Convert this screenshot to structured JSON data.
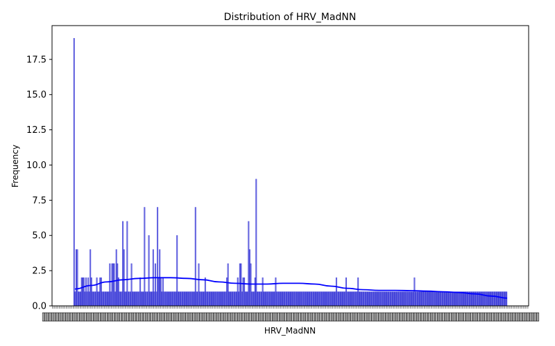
{
  "chart_data": {
    "type": "bar",
    "title": "Distribution of HRV_MadNN",
    "xlabel": "HRV_MadNN",
    "ylabel": "Frequency",
    "ylim": [
      0,
      19.9
    ],
    "y_ticks": [
      "0.0",
      "2.5",
      "5.0",
      "7.5",
      "10.0",
      "12.5",
      "15.0",
      "17.5"
    ],
    "y_tick_values": [
      0,
      2.5,
      5,
      7.5,
      10,
      12.5,
      15,
      17.5
    ],
    "grid": false,
    "bar_color": "#0000cc",
    "kde_color": "#0000ff",
    "counts": [
      19,
      1,
      4,
      4,
      1,
      1,
      1,
      2,
      2,
      2,
      1,
      2,
      1,
      2,
      1,
      4,
      2,
      1,
      1,
      1,
      1,
      2,
      1,
      1,
      2,
      2,
      1,
      1,
      1,
      1,
      1,
      1,
      1,
      3,
      1,
      3,
      3,
      3,
      1,
      4,
      3,
      2,
      1,
      1,
      1,
      6,
      4,
      1,
      1,
      6,
      1,
      1,
      1,
      3,
      1,
      1,
      1,
      1,
      1,
      1,
      1,
      2,
      1,
      1,
      1,
      7,
      1,
      1,
      1,
      5,
      1,
      1,
      1,
      4,
      1,
      3,
      1,
      7,
      2,
      4,
      2,
      1,
      2,
      1,
      1,
      1,
      1,
      1,
      1,
      1,
      1,
      1,
      1,
      1,
      1,
      5,
      1,
      1,
      1,
      1,
      1,
      1,
      1,
      1,
      1,
      1,
      1,
      1,
      1,
      1,
      1,
      1,
      7,
      1,
      1,
      3,
      1,
      1,
      1,
      1,
      1,
      2,
      1,
      1,
      1,
      1,
      1,
      1,
      1,
      1,
      1,
      1,
      1,
      1,
      1,
      1,
      1,
      1,
      1,
      1,
      1,
      2,
      3,
      1,
      1,
      1,
      1,
      1,
      1,
      1,
      1,
      2,
      1,
      3,
      3,
      1,
      2,
      2,
      1,
      1,
      1,
      6,
      4,
      3,
      1,
      1,
      1,
      2,
      9,
      1,
      1,
      1,
      1,
      1,
      2,
      1,
      1,
      1,
      1,
      1,
      1,
      1,
      1,
      1,
      1,
      1,
      2,
      1,
      1,
      1,
      1,
      1,
      1,
      1,
      1,
      1,
      1,
      1,
      1,
      1,
      1,
      1,
      1,
      1,
      1,
      1,
      1,
      1,
      1,
      1,
      1,
      1,
      1,
      1,
      1,
      1,
      1,
      1,
      1,
      1,
      1,
      1,
      1,
      1,
      1,
      1,
      1,
      1,
      1,
      1,
      1,
      1,
      1,
      1,
      1,
      1,
      1,
      1,
      1,
      1,
      1,
      1,
      2,
      1,
      1,
      1,
      1,
      1,
      1,
      1,
      1,
      2,
      1,
      1,
      1,
      1,
      1,
      1,
      1,
      1,
      1,
      1,
      2,
      1,
      1,
      1,
      1,
      1,
      1,
      1,
      1,
      1,
      1,
      1,
      1,
      1,
      1,
      1,
      1,
      1,
      1,
      1,
      1,
      1,
      1,
      1,
      1,
      1,
      1,
      1,
      1,
      1,
      1,
      1,
      1,
      1,
      1,
      1,
      1,
      1,
      1,
      1,
      1,
      1,
      1,
      1,
      1,
      1,
      1,
      1,
      1,
      1,
      1,
      1,
      2,
      1,
      1,
      1,
      1,
      1,
      1,
      1,
      1,
      1,
      1,
      1,
      1,
      1,
      1,
      1,
      1,
      1,
      1,
      1,
      1,
      1,
      1,
      1,
      1,
      1,
      1,
      1,
      1,
      1,
      1,
      1,
      1,
      1,
      1,
      1,
      1,
      1,
      1,
      1,
      1,
      1,
      1,
      1,
      1,
      1,
      1,
      1,
      1,
      1,
      1,
      1,
      1,
      1,
      1,
      1,
      1,
      1,
      1,
      1,
      1,
      1,
      1,
      1,
      1,
      1,
      1,
      1,
      1,
      1,
      1,
      1,
      1,
      1,
      1,
      1,
      1,
      1,
      1,
      1,
      1,
      1,
      1,
      1,
      1,
      1
    ],
    "kde": [
      1.2,
      1.45,
      1.7,
      1.85,
      1.95,
      2.0,
      2.0,
      1.95,
      1.85,
      1.7,
      1.6,
      1.55,
      1.55,
      1.6,
      1.6,
      1.55,
      1.4,
      1.25,
      1.15,
      1.1,
      1.1,
      1.08,
      1.05,
      1.0,
      0.95,
      0.85,
      0.7,
      0.55
    ]
  }
}
